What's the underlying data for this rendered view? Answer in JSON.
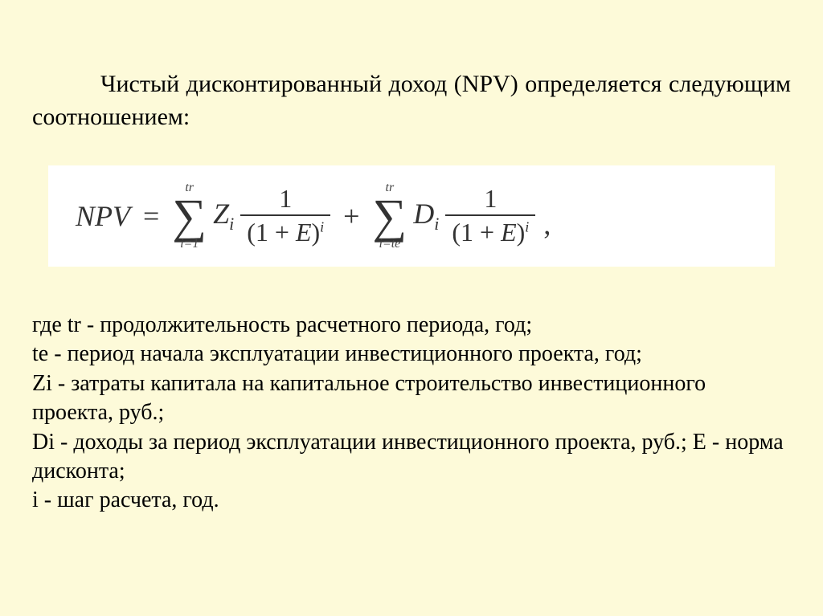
{
  "colors": {
    "page_bg": "#fdfad9",
    "formula_bg": "#ffffff",
    "text": "#000000",
    "formula_text": "#333333"
  },
  "typography": {
    "body_font": "Times New Roman",
    "intro_size_pt": 24,
    "formula_size_pt": 28,
    "definitions_size_pt": 22
  },
  "intro": "Чистый дисконтированный доход (NPV) определяется следующим соотношением:",
  "formula": {
    "lhs": "NPV",
    "equals": "=",
    "plus": "+",
    "trailing": ",",
    "term1": {
      "sum_upper": "tr",
      "sum_lower": "i=1",
      "coef_base": "Z",
      "coef_sub": "i",
      "frac_num": "1",
      "frac_den_open": "(1 + ",
      "frac_den_var": "E",
      "frac_den_close": ")",
      "frac_den_sup": "i"
    },
    "term2": {
      "sum_upper": "tr",
      "sum_lower": "i=te",
      "coef_base": "D",
      "coef_sub": "i",
      "frac_num": "1",
      "frac_den_open": "(1 + ",
      "frac_den_var": "E",
      "frac_den_close": ")",
      "frac_den_sup": "i"
    }
  },
  "definitions": {
    "line1": "где tr - продолжительность расчетного периода, год;",
    "line2": "te - период начала эксплуатации инвестиционного проекта, год;",
    "line3": "Zi - затраты капитала на капитальное строительство инвестиционного проекта, руб.;",
    "line4": "Di - доходы за период эксплуатации инвестиционного проекта, руб.; E - норма дисконта;",
    "line5": "i - шаг расчета, год."
  }
}
